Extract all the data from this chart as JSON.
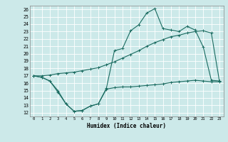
{
  "xlabel": "Humidex (Indice chaleur)",
  "bg_color": "#cce9e9",
  "grid_color": "#b0d4d4",
  "line_color": "#1a6b60",
  "x_ticks": [
    0,
    1,
    2,
    3,
    4,
    5,
    6,
    7,
    8,
    9,
    10,
    11,
    12,
    13,
    14,
    15,
    16,
    17,
    18,
    19,
    20,
    21,
    22,
    23
  ],
  "y_ticks": [
    12,
    13,
    14,
    15,
    16,
    17,
    18,
    19,
    20,
    21,
    22,
    23,
    24,
    25,
    26
  ],
  "ylim": [
    11.5,
    26.5
  ],
  "xlim": [
    -0.5,
    23.5
  ],
  "curve1_x": [
    0,
    1,
    2,
    3,
    4,
    5,
    6,
    7,
    8,
    9,
    10,
    11,
    12,
    13,
    14,
    15,
    16,
    17,
    18,
    19,
    20,
    21,
    22,
    23
  ],
  "curve1_y": [
    17.0,
    16.8,
    16.3,
    14.8,
    13.2,
    12.2,
    12.3,
    12.9,
    13.2,
    15.3,
    20.4,
    20.7,
    23.1,
    23.9,
    25.5,
    26.1,
    23.4,
    23.2,
    23.0,
    23.7,
    23.2,
    20.9,
    16.4,
    16.3
  ],
  "curve2_x": [
    0,
    1,
    2,
    3,
    4,
    5,
    6,
    7,
    8,
    9,
    10,
    11,
    12,
    13,
    14,
    15,
    16,
    17,
    18,
    19,
    20,
    21,
    22,
    23
  ],
  "curve2_y": [
    17.0,
    17.0,
    17.1,
    17.3,
    17.4,
    17.5,
    17.7,
    17.9,
    18.1,
    18.5,
    18.9,
    19.4,
    19.9,
    20.4,
    21.0,
    21.5,
    21.9,
    22.3,
    22.5,
    22.8,
    23.0,
    23.1,
    22.8,
    16.3
  ],
  "curve3_x": [
    0,
    1,
    2,
    3,
    4,
    5,
    6,
    7,
    8,
    9,
    10,
    11,
    12,
    13,
    14,
    15,
    16,
    17,
    18,
    19,
    20,
    21,
    22,
    23
  ],
  "curve3_y": [
    17.0,
    16.8,
    16.3,
    15.0,
    13.2,
    12.2,
    12.3,
    12.9,
    13.2,
    15.2,
    15.4,
    15.5,
    15.5,
    15.6,
    15.7,
    15.8,
    15.9,
    16.1,
    16.2,
    16.3,
    16.4,
    16.3,
    16.2,
    16.2
  ]
}
